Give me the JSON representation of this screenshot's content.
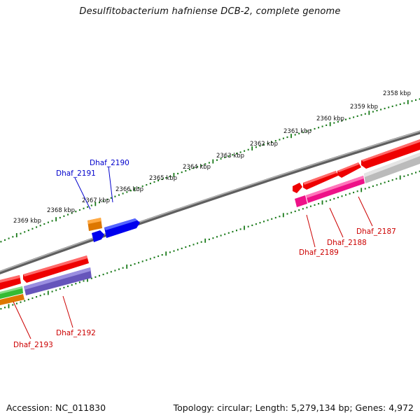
{
  "title": "Desulfitobacterium hafniense DCB-2, complete genome",
  "footer": {
    "accession": "Accession: NC_011830",
    "stats": "Topology: circular; Length: 5,279,134 bp; Genes: 4,972"
  },
  "ruler": {
    "unit": "kbp",
    "labels": [
      "2358 kbp",
      "2359 kbp",
      "2360 kbp",
      "2361 kbp",
      "2362 kbp",
      "2363 kbp",
      "2364 kbp",
      "2365 kbp",
      "2366 kbp",
      "2367 kbp",
      "2368 kbp",
      "2369 kbp"
    ]
  },
  "genes": {
    "reverse_strand_labels": [
      "Dhaf_2190",
      "Dhaf_2191"
    ],
    "forward_strand_labels": [
      "Dhaf_2187",
      "Dhaf_2188",
      "Dhaf_2189",
      "Dhaf_2192",
      "Dhaf_2193"
    ]
  },
  "colors": {
    "reverse_label": "#0000cc",
    "forward_label": "#cc0000",
    "backbone": "#808080",
    "ticks": "#1a7a1a",
    "red_cds": "#ee0000",
    "magenta_cds": "#ee1188",
    "purple_cds": "#6655bb",
    "gray_cds": "#bbbbbb",
    "blue_cds": "#0000ee",
    "orange_cds": "#dd7700",
    "green_cds": "#33bb33"
  }
}
